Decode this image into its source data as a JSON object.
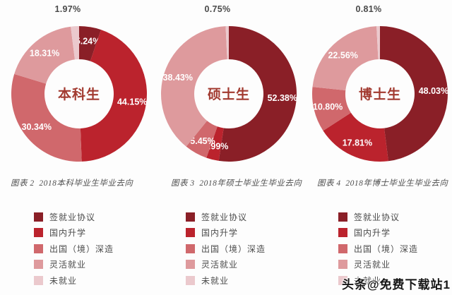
{
  "watermark": {
    "text": "头条@免费下载站1"
  },
  "legend": {
    "items": [
      {
        "label": "签就业协议",
        "color": "#8A1F27"
      },
      {
        "label": "国内升学",
        "color": "#BB232D"
      },
      {
        "label": "出国（境）深造",
        "color": "#D0686C"
      },
      {
        "label": "灵活就业",
        "color": "#DE9A9D"
      },
      {
        "label": "未就业",
        "color": "#EBC9CD"
      }
    ]
  },
  "chart_data": [
    {
      "type": "donut",
      "center_label": "本科生",
      "caption": "图表 2  2018本科毕业生毕业去向",
      "categories": [
        "签就业协议",
        "国内升学",
        "出国（境）深造",
        "灵活就业",
        "未就业"
      ],
      "values": [
        5.24,
        44.15,
        30.34,
        18.31,
        1.97
      ],
      "labels": [
        "5.24%",
        "44.15%",
        "30.34%",
        "18.31%",
        "1.97%"
      ],
      "colors": [
        "#8A1F27",
        "#BB232D",
        "#D0686C",
        "#DE9A9D",
        "#EBC9CD"
      ],
      "outside_label_index": 4,
      "start_angle_deg": 0,
      "direction": "clockwise"
    },
    {
      "type": "donut",
      "center_label": "硕士生",
      "caption": "图表 3  2018年硕士毕业生毕业去向",
      "categories": [
        "签就业协议",
        "国内升学",
        "出国（境）深造",
        "灵活就业",
        "未就业"
      ],
      "values": [
        52.38,
        2.99,
        5.45,
        38.43,
        0.75
      ],
      "labels": [
        "52.38%",
        "2.99%",
        "5.45%",
        "38.43%",
        "0.75%"
      ],
      "colors": [
        "#8A1F27",
        "#BB232D",
        "#D0686C",
        "#DE9A9D",
        "#EBC9CD"
      ],
      "outside_label_index": 4,
      "start_angle_deg": 0,
      "direction": "clockwise"
    },
    {
      "type": "donut",
      "center_label": "博士生",
      "caption": "图表 4  2018年博士毕业生毕业去向",
      "categories": [
        "签就业协议",
        "国内升学",
        "出国（境）深造",
        "灵活就业",
        "未就业"
      ],
      "values": [
        48.03,
        17.81,
        10.8,
        22.56,
        0.81
      ],
      "labels": [
        "48.03%",
        "17.81%",
        "10.80%",
        "22.56%",
        "0.81%"
      ],
      "colors": [
        "#8A1F27",
        "#BB232D",
        "#D0686C",
        "#DE9A9D",
        "#EBC9CD"
      ],
      "outside_label_index": 4,
      "start_angle_deg": 0,
      "direction": "clockwise"
    }
  ]
}
